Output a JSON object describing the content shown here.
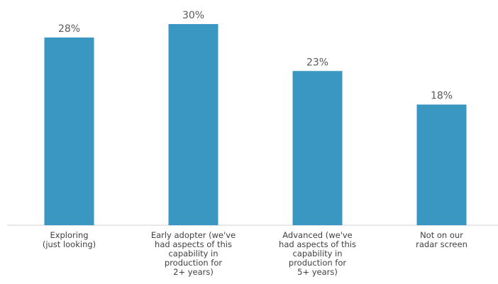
{
  "chart_data": {
    "type": "bar",
    "title": "",
    "xlabel": "",
    "ylabel": "",
    "ylim": [
      0,
      30
    ],
    "grid": false,
    "legend": "none",
    "bar_color": "#3a97c1",
    "categories": [
      [
        "Exploring",
        "(just looking)"
      ],
      [
        "Early adopter (we've",
        "had aspects of this",
        "capability in",
        "production for",
        "2+ years)"
      ],
      [
        "Advanced (we've",
        "had aspects of this",
        "capability in",
        "production for",
        "5+ years)"
      ],
      [
        "Not on our",
        "radar screen"
      ]
    ],
    "values": [
      28,
      30,
      23,
      18
    ],
    "value_labels": [
      "28%",
      "30%",
      "23%",
      "18%"
    ]
  }
}
